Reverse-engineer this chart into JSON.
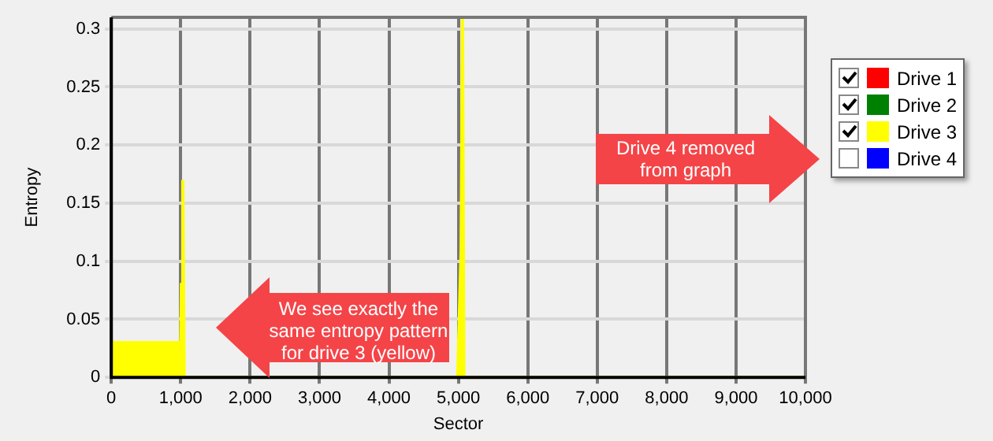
{
  "chart_data": {
    "type": "area",
    "xlabel": "Sector",
    "ylabel": "Entropy",
    "x": [
      0,
      1000,
      1010,
      1030,
      1050,
      4990,
      5040,
      5060,
      5080,
      10000
    ],
    "series": [
      {
        "name": "Drive 1",
        "color": "#ff0000",
        "values": [
          null,
          null,
          null,
          null,
          null,
          null,
          null,
          null,
          null,
          null
        ]
      },
      {
        "name": "Drive 2",
        "color": "#008000",
        "values": [
          null,
          null,
          null,
          null,
          null,
          null,
          null,
          null,
          null,
          null
        ]
      },
      {
        "name": "Drive 3",
        "color": "#ffff00",
        "values": [
          0.03,
          0.03,
          0.08,
          0.17,
          0,
          0,
          0.11,
          0.31,
          0,
          0
        ]
      },
      {
        "name": "Drive 4",
        "color": "#0000ff",
        "values": [
          null,
          null,
          null,
          null,
          null,
          null,
          null,
          null,
          null,
          null
        ]
      }
    ],
    "xlim": [
      0,
      10000
    ],
    "xticks": [
      0,
      {
        "value": 1000,
        "label": "1,000"
      },
      {
        "value": 2000,
        "label": "2,000"
      },
      {
        "value": 3000,
        "label": "3,000"
      },
      {
        "value": 4000,
        "label": "4,000"
      },
      {
        "value": 5000,
        "label": "5,000"
      },
      {
        "value": 6000,
        "label": "6,000"
      },
      {
        "value": 7000,
        "label": "7,000"
      },
      {
        "value": 8000,
        "label": "8,000"
      },
      {
        "value": 9000,
        "label": "9,000"
      },
      {
        "value": 10000,
        "label": "10,000"
      }
    ],
    "ylim": [
      0,
      0.31
    ],
    "yticks": [
      0,
      0.05,
      0.1,
      0.15,
      0.2,
      0.25,
      0.3
    ],
    "grid": true,
    "legend": "right",
    "annotations": [
      "We see exactly the same entropy pattern for drive 3 (yellow)",
      "Drive 4 removed from graph"
    ]
  }
}
